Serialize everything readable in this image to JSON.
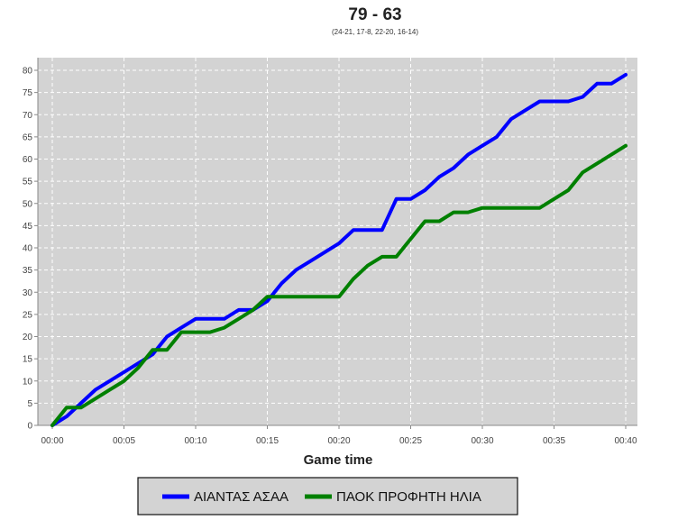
{
  "chart_data": {
    "type": "line",
    "title": "79 - 63",
    "subtitle": "(24-21, 17-8, 22-20, 16-14)",
    "xlabel": "Game time",
    "ylabel": "",
    "xlim": [
      0,
      40
    ],
    "ylim": [
      0,
      82
    ],
    "x_ticks": [
      0,
      5,
      10,
      15,
      20,
      25,
      30,
      35,
      40
    ],
    "x_tick_labels": [
      "00:00",
      "00:05",
      "00:10",
      "00:15",
      "00:20",
      "00:25",
      "00:30",
      "00:35",
      "00:40"
    ],
    "y_ticks": [
      0,
      5,
      10,
      15,
      20,
      25,
      30,
      35,
      40,
      45,
      50,
      55,
      60,
      65,
      70,
      75,
      80
    ],
    "grid": true,
    "legend_position": "bottom",
    "series": [
      {
        "name": "ΑΙΑΝΤΑΣ ΑΣΑΑ",
        "color": "#0000ff",
        "points": [
          [
            0,
            0
          ],
          [
            1,
            2
          ],
          [
            2,
            5
          ],
          [
            3,
            8
          ],
          [
            4,
            10
          ],
          [
            5,
            12
          ],
          [
            6,
            14
          ],
          [
            7,
            16
          ],
          [
            8,
            20
          ],
          [
            9,
            22
          ],
          [
            10,
            24
          ],
          [
            11,
            24
          ],
          [
            12,
            24
          ],
          [
            13,
            26
          ],
          [
            14,
            26
          ],
          [
            15,
            28
          ],
          [
            16,
            32
          ],
          [
            17,
            35
          ],
          [
            18,
            37
          ],
          [
            19,
            39
          ],
          [
            20,
            41
          ],
          [
            21,
            44
          ],
          [
            22,
            44
          ],
          [
            23,
            44
          ],
          [
            24,
            51
          ],
          [
            25,
            51
          ],
          [
            26,
            53
          ],
          [
            27,
            56
          ],
          [
            28,
            58
          ],
          [
            29,
            61
          ],
          [
            30,
            63
          ],
          [
            31,
            65
          ],
          [
            32,
            69
          ],
          [
            33,
            71
          ],
          [
            34,
            73
          ],
          [
            35,
            73
          ],
          [
            36,
            73
          ],
          [
            37,
            74
          ],
          [
            38,
            77
          ],
          [
            39,
            77
          ],
          [
            40,
            79
          ]
        ]
      },
      {
        "name": "ΠΑΟΚ ΠΡΟΦΗΤΗ ΗΛΙΑ",
        "color": "#008000",
        "points": [
          [
            0,
            0
          ],
          [
            1,
            4
          ],
          [
            2,
            4
          ],
          [
            3,
            6
          ],
          [
            4,
            8
          ],
          [
            5,
            10
          ],
          [
            6,
            13
          ],
          [
            7,
            17
          ],
          [
            8,
            17
          ],
          [
            9,
            21
          ],
          [
            10,
            21
          ],
          [
            11,
            21
          ],
          [
            12,
            22
          ],
          [
            13,
            24
          ],
          [
            14,
            26
          ],
          [
            15,
            29
          ],
          [
            16,
            29
          ],
          [
            17,
            29
          ],
          [
            18,
            29
          ],
          [
            19,
            29
          ],
          [
            20,
            29
          ],
          [
            21,
            33
          ],
          [
            22,
            36
          ],
          [
            23,
            38
          ],
          [
            24,
            38
          ],
          [
            25,
            42
          ],
          [
            26,
            46
          ],
          [
            27,
            46
          ],
          [
            28,
            48
          ],
          [
            29,
            48
          ],
          [
            30,
            49
          ],
          [
            31,
            49
          ],
          [
            32,
            49
          ],
          [
            33,
            49
          ],
          [
            34,
            49
          ],
          [
            35,
            51
          ],
          [
            36,
            53
          ],
          [
            37,
            57
          ],
          [
            38,
            59
          ],
          [
            39,
            61
          ],
          [
            40,
            63
          ]
        ]
      }
    ]
  }
}
